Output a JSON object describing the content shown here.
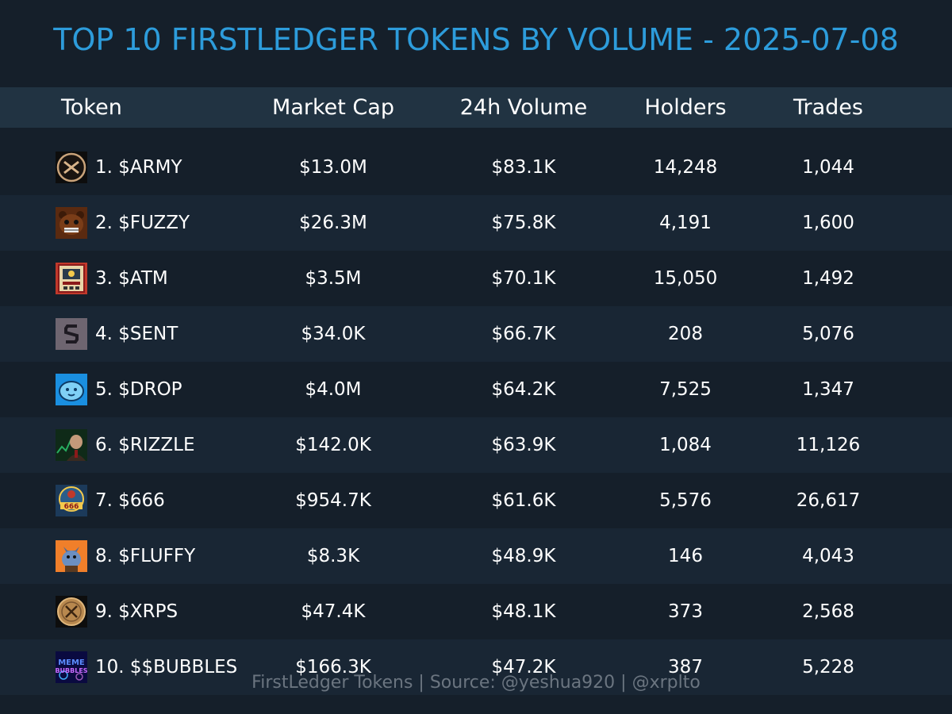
{
  "chart_data": {
    "type": "table",
    "title": "TOP 10 FIRSTLEDGER TOKENS BY VOLUME - 2025-07-08",
    "columns": [
      "Token",
      "Market Cap",
      "24h Volume",
      "Holders",
      "Trades"
    ],
    "rows": [
      {
        "rank": 1,
        "token": "1. $ARMY",
        "market_cap": "$13.0M",
        "volume_24h": "$83.1K",
        "holders": "14,248",
        "trades": "1,044",
        "icon": "army-logo-icon"
      },
      {
        "rank": 2,
        "token": "2. $FUZZY",
        "market_cap": "$26.3M",
        "volume_24h": "$75.8K",
        "holders": "4,191",
        "trades": "1,600",
        "icon": "fuzzy-bear-logo-icon"
      },
      {
        "rank": 3,
        "token": "3. $ATM",
        "market_cap": "$3.5M",
        "volume_24h": "$70.1K",
        "holders": "15,050",
        "trades": "1,492",
        "icon": "atm-machine-logo-icon"
      },
      {
        "rank": 4,
        "token": "4. $SENT",
        "market_cap": "$34.0K",
        "volume_24h": "$66.7K",
        "holders": "208",
        "trades": "5,076",
        "icon": "sent-s-logo-icon"
      },
      {
        "rank": 5,
        "token": "5. $DROP",
        "market_cap": "$4.0M",
        "volume_24h": "$64.2K",
        "holders": "7,525",
        "trades": "1,347",
        "icon": "drop-face-logo-icon"
      },
      {
        "rank": 6,
        "token": "6. $RIZZLE",
        "market_cap": "$142.0K",
        "volume_24h": "$63.9K",
        "holders": "1,084",
        "trades": "11,126",
        "icon": "rizzle-portrait-logo-icon"
      },
      {
        "rank": 7,
        "token": "7. $666",
        "market_cap": "$954.7K",
        "volume_24h": "$61.6K",
        "holders": "5,576",
        "trades": "26,617",
        "icon": "666-badge-logo-icon"
      },
      {
        "rank": 8,
        "token": "8. $FLUFFY",
        "market_cap": "$8.3K",
        "volume_24h": "$48.9K",
        "holders": "146",
        "trades": "4,043",
        "icon": "fluffy-creature-logo-icon"
      },
      {
        "rank": 9,
        "token": "9. $XRPS",
        "market_cap": "$47.4K",
        "volume_24h": "$48.1K",
        "holders": "373",
        "trades": "2,568",
        "icon": "xrps-coin-logo-icon"
      },
      {
        "rank": 10,
        "token": "10. $$BUBBLES",
        "market_cap": "$166.3K",
        "volume_24h": "$47.2K",
        "holders": "387",
        "trades": "5,228",
        "icon": "bubbles-meme-logo-icon"
      }
    ],
    "footer": "FirstLedger Tokens | Source: @yeshua920 | @xrplto",
    "colors": {
      "background": "#151f2a",
      "row_alt": "#192634",
      "header_band": "#213342",
      "title": "#2d9cdb",
      "footer": "#6b7580"
    }
  }
}
